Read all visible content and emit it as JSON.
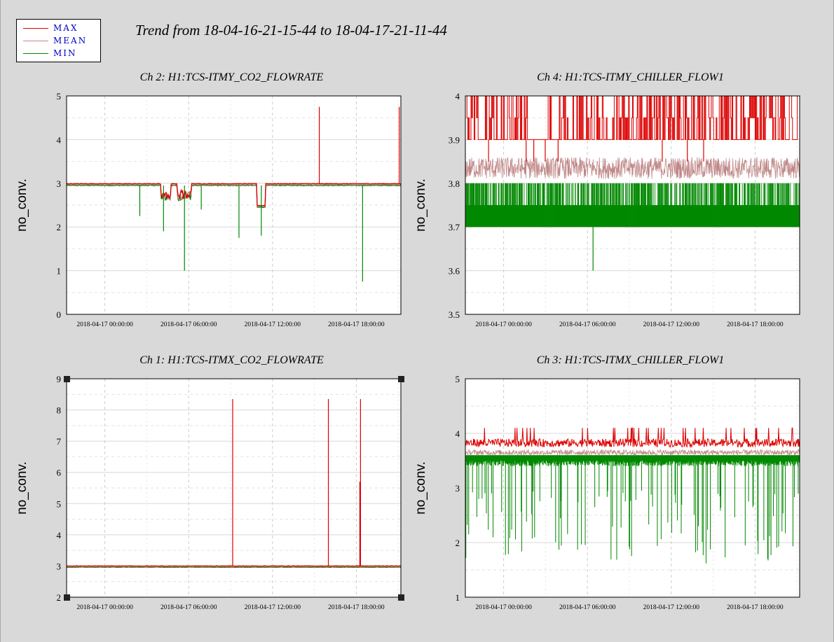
{
  "title": "Trend from 18-04-16-21-15-44 to 18-04-17-21-11-44",
  "legend": [
    {
      "name": "MAX",
      "color": "#dd0000"
    },
    {
      "name": "MEAN",
      "color": "#c08888"
    },
    {
      "name": "MIN",
      "color": "#008800"
    }
  ],
  "chart_data": [
    {
      "id": "ch2",
      "type": "line",
      "title": "Ch 2: H1:TCS-ITMY_CO2_FLOWRATE",
      "ylabel": "no_conv.",
      "ylim": [
        0,
        5
      ],
      "yticks": [
        "0",
        "1",
        "2",
        "3",
        "4",
        "5"
      ],
      "xticks": [
        "2018-04-17 00:00:00",
        "2018-04-17 06:00:00",
        "2018-04-17 12:00:00",
        "2018-04-17 18:00:00"
      ],
      "xlim_hours": [
        -2.74,
        21.19
      ],
      "baseline": {
        "max": 2.99,
        "mean": 2.97,
        "min": 2.95
      },
      "series": [
        {
          "name": "MAX",
          "color": "#dd0000",
          "spikes": [
            [
              15.35,
              4.75
            ],
            [
              21.07,
              4.75
            ]
          ]
        },
        {
          "name": "MIN",
          "color": "#008800",
          "spikes": [
            [
              2.5,
              2.25
            ],
            [
              4.2,
              1.9
            ],
            [
              5.7,
              1.0
            ],
            [
              6.9,
              2.4
            ],
            [
              9.6,
              1.75
            ],
            [
              11.2,
              1.8
            ],
            [
              18.45,
              0.75
            ]
          ]
        }
      ],
      "selected": false
    },
    {
      "id": "ch4",
      "type": "line",
      "title": "Ch 4: H1:TCS-ITMY_CHILLER_FLOW1",
      "ylabel": "no_conv.",
      "ylim": [
        3.5,
        4.0
      ],
      "yticks": [
        "3.5",
        "3.6",
        "3.7",
        "3.8",
        "3.9",
        "4"
      ],
      "xticks": [
        "2018-04-17 00:00:00",
        "2018-04-17 06:00:00",
        "2018-04-17 12:00:00",
        "2018-04-17 18:00:00"
      ],
      "xlim_hours": [
        -2.74,
        21.19
      ],
      "baseline": {
        "max": 3.9,
        "mean": 3.83,
        "min": 3.7
      },
      "series": [
        {
          "name": "MAX",
          "color": "#dd0000",
          "range": [
            3.9,
            4.0
          ]
        },
        {
          "name": "MEAN",
          "color": "#c08888",
          "range": [
            3.81,
            3.86
          ]
        },
        {
          "name": "MIN",
          "color": "#008800",
          "range": [
            3.7,
            3.8
          ],
          "spikes": [
            [
              6.4,
              3.6
            ]
          ]
        }
      ],
      "selected": false
    },
    {
      "id": "ch1",
      "type": "line",
      "title": "Ch 1: H1:TCS-ITMX_CO2_FLOWRATE",
      "ylabel": "no_conv.",
      "ylim": [
        2,
        9
      ],
      "yticks": [
        "2",
        "3",
        "4",
        "5",
        "6",
        "7",
        "8",
        "9"
      ],
      "xticks": [
        "2018-04-17 00:00:00",
        "2018-04-17 06:00:00",
        "2018-04-17 12:00:00",
        "2018-04-17 18:00:00"
      ],
      "xlim_hours": [
        -2.74,
        21.19
      ],
      "baseline": {
        "max": 3.0,
        "mean": 2.98,
        "min": 2.96
      },
      "series": [
        {
          "name": "MAX",
          "color": "#dd0000",
          "spikes": [
            [
              9.15,
              8.35
            ],
            [
              16.0,
              8.35
            ],
            [
              18.3,
              8.35
            ],
            [
              18.25,
              5.7
            ]
          ]
        }
      ],
      "selected": true
    },
    {
      "id": "ch3",
      "type": "line",
      "title": "Ch 3: H1:TCS-ITMX_CHILLER_FLOW1",
      "ylabel": "no_conv.",
      "ylim": [
        1,
        5
      ],
      "yticks": [
        "1",
        "2",
        "3",
        "4",
        "5"
      ],
      "xticks": [
        "2018-04-17 00:00:00",
        "2018-04-17 06:00:00",
        "2018-04-17 12:00:00",
        "2018-04-17 18:00:00"
      ],
      "xlim_hours": [
        -2.74,
        21.19
      ],
      "baseline": {
        "max": 3.85,
        "mean": 3.65,
        "min": 3.55
      },
      "series": [
        {
          "name": "MAX",
          "color": "#dd0000",
          "range": [
            3.75,
            4.1
          ]
        },
        {
          "name": "MEAN",
          "color": "#c08888",
          "range": [
            3.6,
            3.7
          ]
        },
        {
          "name": "MIN",
          "color": "#008800",
          "range": [
            3.4,
            3.6
          ],
          "dip_level": 1.6
        }
      ],
      "selected": false
    }
  ]
}
